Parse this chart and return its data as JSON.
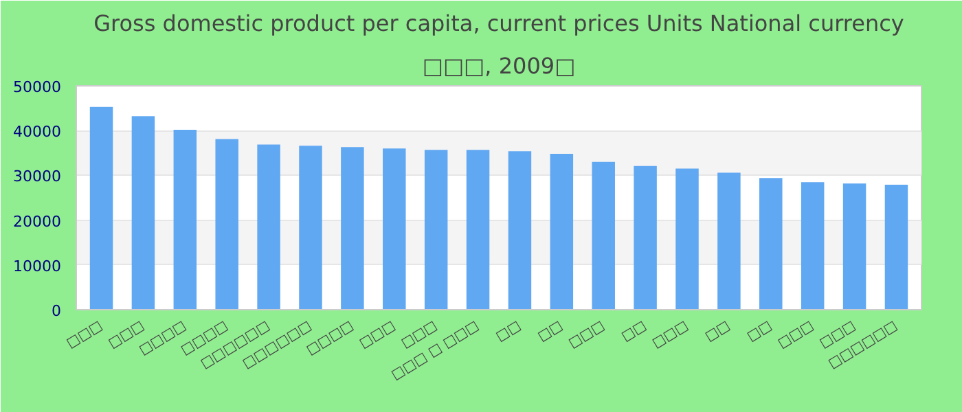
{
  "chart_data": {
    "type": "bar",
    "title": "Gross domestic product per capita, current prices Units National currency",
    "subtitle": "□□□, 2009□",
    "categories": [
      "□□□",
      "□□□",
      "□□□□",
      "□□□□",
      "□□□□□□",
      "□□□□□□",
      "□□□□",
      "□□□",
      "□□□",
      "□□□ □ □□□",
      "□□",
      "□□",
      "□□□",
      "□□",
      "□□□",
      "□□",
      "□□",
      "□□□",
      "□□□",
      "□□□□□□"
    ],
    "values": [
      45300,
      43200,
      40200,
      38100,
      36900,
      36600,
      36300,
      36000,
      35700,
      35700,
      35400,
      34800,
      33000,
      32100,
      31500,
      30600,
      29400,
      28500,
      28200,
      27900
    ],
    "color": "#61a8f3",
    "ylim": [
      0,
      50000
    ],
    "yticks": [
      0,
      10000,
      20000,
      30000,
      40000,
      50000
    ],
    "grid": "y"
  }
}
